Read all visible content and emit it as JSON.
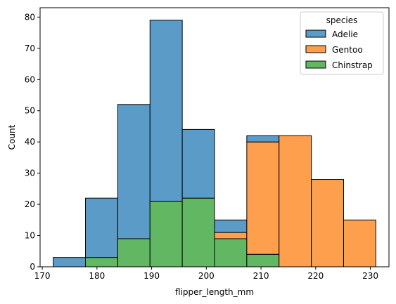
{
  "chart_data": {
    "type": "bar",
    "subtype": "stacked-histogram",
    "xlabel": "flipper_length_mm",
    "ylabel": "Count",
    "xlim": [
      169.6,
      233.4
    ],
    "ylim": [
      0,
      83
    ],
    "xticks": [
      170,
      180,
      190,
      200,
      210,
      220,
      230
    ],
    "yticks": [
      0,
      10,
      20,
      30,
      40,
      50,
      60,
      70,
      80
    ],
    "grid": false,
    "bin_edges": [
      172.0,
      177.9,
      183.8,
      189.7,
      195.6,
      201.5,
      207.4,
      213.3,
      219.2,
      225.1,
      231.0
    ],
    "series": [
      {
        "name": "Chinstrap",
        "color": "#62b862",
        "values": [
          0,
          3,
          9,
          21,
          22,
          9,
          4,
          0,
          0,
          0
        ]
      },
      {
        "name": "Gentoo",
        "color": "#fe9f4e",
        "values": [
          0,
          0,
          0,
          0,
          0,
          2,
          36,
          42,
          28,
          15
        ]
      },
      {
        "name": "Adelie",
        "color": "#5a9bc8",
        "values": [
          3,
          19,
          43,
          58,
          22,
          4,
          2,
          0,
          0,
          0
        ]
      }
    ],
    "legend": {
      "title": "species",
      "position": "top-right",
      "entries": [
        {
          "name": "Adelie",
          "color": "#5a9bc8"
        },
        {
          "name": "Gentoo",
          "color": "#fe9f4e"
        },
        {
          "name": "Chinstrap",
          "color": "#62b862"
        }
      ]
    }
  }
}
